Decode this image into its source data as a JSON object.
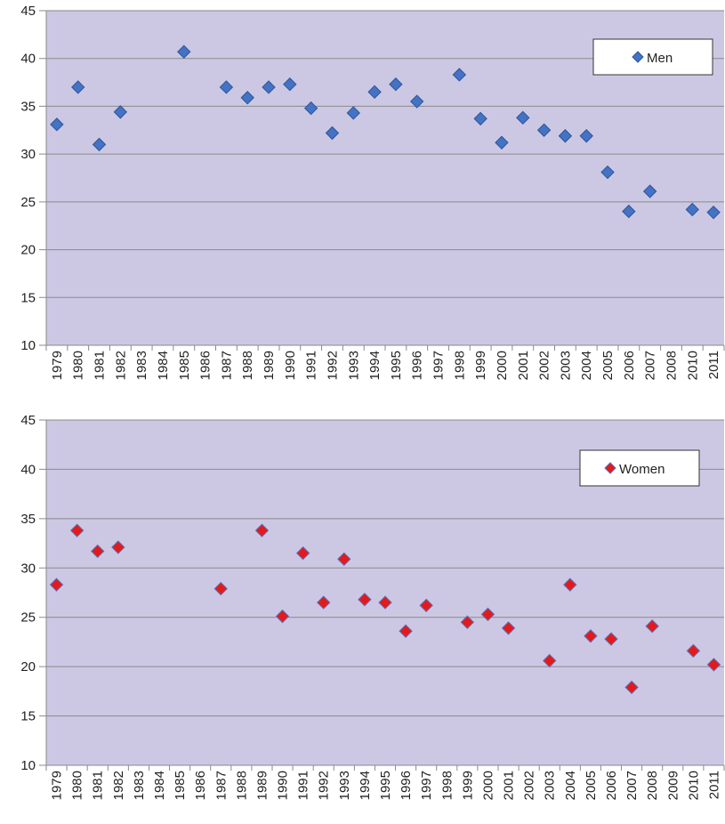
{
  "chart_data": [
    {
      "type": "scatter",
      "categories": [
        "1979",
        "1980",
        "1981",
        "1982",
        "1983",
        "1984",
        "1985",
        "1986",
        "1987",
        "1988",
        "1989",
        "1990",
        "1991",
        "1992",
        "1993",
        "1994",
        "1995",
        "1996",
        "1997",
        "1998",
        "1999",
        "2000",
        "2001",
        "2002",
        "2003",
        "2004",
        "2005",
        "2006",
        "2007",
        "2008",
        "2010",
        "2011"
      ],
      "series": [
        {
          "name": "Men",
          "color": "#4472c4",
          "values": [
            33.1,
            37,
            31,
            34.4,
            null,
            null,
            40.7,
            null,
            37,
            35.9,
            37,
            37.3,
            34.8,
            32.2,
            34.3,
            36.5,
            37.3,
            35.5,
            null,
            38.3,
            33.7,
            31.2,
            33.8,
            32.5,
            31.9,
            31.9,
            28.1,
            24,
            26.1,
            null,
            24.2,
            23.9
          ]
        }
      ],
      "ylim": [
        10,
        45
      ],
      "yticks": [
        10,
        15,
        20,
        25,
        30,
        35,
        40,
        45
      ],
      "grid": true,
      "legend": "upper right"
    },
    {
      "type": "scatter",
      "categories": [
        "1979",
        "1980",
        "1981",
        "1982",
        "1983",
        "1984",
        "1985",
        "1986",
        "1987",
        "1988",
        "1989",
        "1990",
        "1991",
        "1992",
        "1993",
        "1994",
        "1995",
        "1996",
        "1997",
        "1998",
        "1999",
        "2000",
        "2001",
        "2002",
        "2003",
        "2004",
        "2005",
        "2006",
        "2007",
        "2008",
        "2009",
        "2010",
        "2011"
      ],
      "series": [
        {
          "name": "Women",
          "color": "#e31a1c",
          "values": [
            28.3,
            33.8,
            31.7,
            32.1,
            null,
            null,
            null,
            null,
            27.9,
            null,
            33.8,
            25.1,
            31.5,
            26.5,
            30.9,
            26.8,
            26.5,
            23.6,
            26.2,
            null,
            24.5,
            25.3,
            23.9,
            null,
            20.6,
            28.3,
            23.1,
            22.8,
            17.9,
            24.1,
            null,
            21.6,
            20.2
          ]
        }
      ],
      "ylim": [
        10,
        45
      ],
      "yticks": [
        10,
        15,
        20,
        25,
        30,
        35,
        40,
        45
      ],
      "grid": true,
      "legend": "upper right"
    }
  ]
}
